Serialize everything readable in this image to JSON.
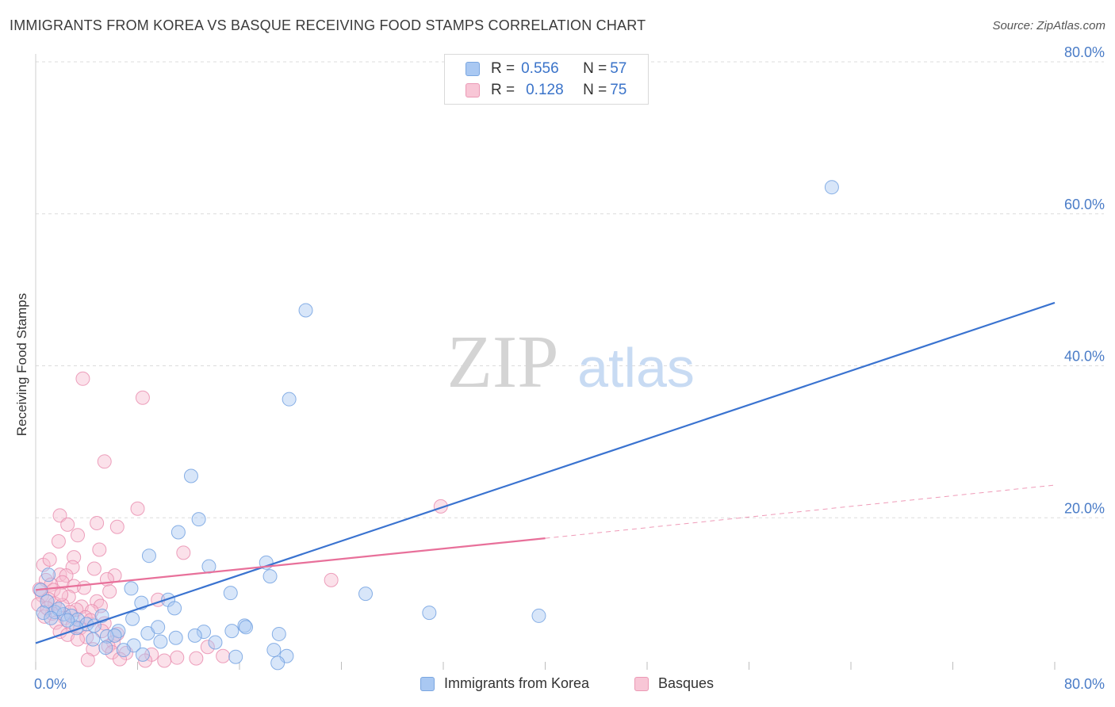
{
  "title": "IMMIGRANTS FROM KOREA VS BASQUE RECEIVING FOOD STAMPS CORRELATION CHART",
  "source": "Source: ZipAtlas.com",
  "watermark": {
    "zip": "ZIP",
    "atlas": "atlas"
  },
  "colors": {
    "blue": "#3a73d0",
    "pink": "#e8709a",
    "blue_fill": "#a9c8f2",
    "pink_fill": "#f6bdd0",
    "axis_text": "#4a7cc7"
  },
  "legend": {
    "rows": [
      {
        "r_label": "R = ",
        "r_value": "0.556",
        "n_label": "N = ",
        "n_value": "57"
      },
      {
        "r_label": "R = ",
        "r_value": "0.128",
        "n_label": "N = ",
        "n_value": "75"
      }
    ]
  },
  "chart_data": {
    "type": "scatter",
    "title": "IMMIGRANTS FROM KOREA VS BASQUE RECEIVING FOOD STAMPS CORRELATION CHART",
    "xlabel": "",
    "ylabel": "Receiving Food Stamps",
    "xlim": [
      0,
      80
    ],
    "ylim": [
      0,
      80
    ],
    "x_tick_labels": [
      "0.0%",
      "80.0%"
    ],
    "y_tick_labels": [
      "20.0%",
      "40.0%",
      "60.0%",
      "80.0%"
    ],
    "y_ticks": [
      20,
      40,
      60,
      80
    ],
    "grid": true,
    "legend_position": "top-center",
    "series": [
      {
        "name": "Immigrants from Korea",
        "color": "#3a73d0",
        "r": 0.556,
        "n": 57,
        "trend": {
          "x": [
            0,
            80
          ],
          "y": [
            3.5,
            48.3
          ],
          "style": "solid"
        },
        "points": [
          [
            62.5,
            63.5
          ],
          [
            21.2,
            47.3
          ],
          [
            19.9,
            35.6
          ],
          [
            12.2,
            25.5
          ],
          [
            12.8,
            19.8
          ],
          [
            11.2,
            18.1
          ],
          [
            8.9,
            15.0
          ],
          [
            13.6,
            13.6
          ],
          [
            18.1,
            14.1
          ],
          [
            18.4,
            12.3
          ],
          [
            25.9,
            10.0
          ],
          [
            30.9,
            7.5
          ],
          [
            39.5,
            7.1
          ],
          [
            15.3,
            10.1
          ],
          [
            7.5,
            10.7
          ],
          [
            8.3,
            8.8
          ],
          [
            10.4,
            9.2
          ],
          [
            10.9,
            8.1
          ],
          [
            1.0,
            12.5
          ],
          [
            0.4,
            10.5
          ],
          [
            0.9,
            9.0
          ],
          [
            1.5,
            7.6
          ],
          [
            2.2,
            7.3
          ],
          [
            2.8,
            7.1
          ],
          [
            3.3,
            6.6
          ],
          [
            4.0,
            6.0
          ],
          [
            4.6,
            5.8
          ],
          [
            5.2,
            7.1
          ],
          [
            5.6,
            4.4
          ],
          [
            6.5,
            5.1
          ],
          [
            7.6,
            6.7
          ],
          [
            8.8,
            4.8
          ],
          [
            9.6,
            5.6
          ],
          [
            9.8,
            3.7
          ],
          [
            13.2,
            5.0
          ],
          [
            15.4,
            5.1
          ],
          [
            16.4,
            5.8
          ],
          [
            16.5,
            5.6
          ],
          [
            19.1,
            4.7
          ],
          [
            18.7,
            2.6
          ],
          [
            19.7,
            1.8
          ],
          [
            14.1,
            3.6
          ],
          [
            15.7,
            1.7
          ],
          [
            7.7,
            3.2
          ],
          [
            6.2,
            4.5
          ],
          [
            5.5,
            2.9
          ],
          [
            4.5,
            4.0
          ],
          [
            3.2,
            5.5
          ],
          [
            2.5,
            6.5
          ],
          [
            1.8,
            8.0
          ],
          [
            0.6,
            7.5
          ],
          [
            1.2,
            6.8
          ],
          [
            6.9,
            2.6
          ],
          [
            11.0,
            4.2
          ],
          [
            8.4,
            2.0
          ],
          [
            19.0,
            0.9
          ],
          [
            12.5,
            4.5
          ]
        ]
      },
      {
        "name": "Basques",
        "color": "#e8709a",
        "r": 0.128,
        "n": 75,
        "trend": {
          "x": [
            0,
            40
          ],
          "y": [
            10.5,
            17.3
          ],
          "style": "solid",
          "dashed_extension": {
            "x": [
              40,
              80
            ],
            "y": [
              17.3,
              24.3
            ]
          }
        },
        "points": [
          [
            3.7,
            38.3
          ],
          [
            8.4,
            35.8
          ],
          [
            5.4,
            27.4
          ],
          [
            31.8,
            21.5
          ],
          [
            8.0,
            21.2
          ],
          [
            1.9,
            20.3
          ],
          [
            4.8,
            19.3
          ],
          [
            6.4,
            18.8
          ],
          [
            2.5,
            19.1
          ],
          [
            3.3,
            17.7
          ],
          [
            1.8,
            16.9
          ],
          [
            5.0,
            15.8
          ],
          [
            11.6,
            15.4
          ],
          [
            3.0,
            14.8
          ],
          [
            2.9,
            13.5
          ],
          [
            0.6,
            13.8
          ],
          [
            4.6,
            13.3
          ],
          [
            6.2,
            12.4
          ],
          [
            1.9,
            12.5
          ],
          [
            2.4,
            12.4
          ],
          [
            5.6,
            11.9
          ],
          [
            23.2,
            11.8
          ],
          [
            0.8,
            11.8
          ],
          [
            2.1,
            11.5
          ],
          [
            1.2,
            11.2
          ],
          [
            3.0,
            11.0
          ],
          [
            0.3,
            10.6
          ],
          [
            1.4,
            10.5
          ],
          [
            5.8,
            10.3
          ],
          [
            0.5,
            9.8
          ],
          [
            2.6,
            9.6
          ],
          [
            1.0,
            9.3
          ],
          [
            4.8,
            9.0
          ],
          [
            9.6,
            9.2
          ],
          [
            1.5,
            8.7
          ],
          [
            2.1,
            8.5
          ],
          [
            0.2,
            8.6
          ],
          [
            3.6,
            8.3
          ],
          [
            5.1,
            8.4
          ],
          [
            3.2,
            7.9
          ],
          [
            2.7,
            7.6
          ],
          [
            4.4,
            7.7
          ],
          [
            1.3,
            7.4
          ],
          [
            0.7,
            7.0
          ],
          [
            3.9,
            6.9
          ],
          [
            2.3,
            6.8
          ],
          [
            1.6,
            6.2
          ],
          [
            4.3,
            6.5
          ],
          [
            5.4,
            6.1
          ],
          [
            2.9,
            5.8
          ],
          [
            3.5,
            5.5
          ],
          [
            1.9,
            5.0
          ],
          [
            5.2,
            5.1
          ],
          [
            6.4,
            4.7
          ],
          [
            2.5,
            4.6
          ],
          [
            4.0,
            4.3
          ],
          [
            3.3,
            4.0
          ],
          [
            6.1,
            3.6
          ],
          [
            5.7,
            3.1
          ],
          [
            4.5,
            2.7
          ],
          [
            6.0,
            2.3
          ],
          [
            7.1,
            2.2
          ],
          [
            9.1,
            2.0
          ],
          [
            10.1,
            1.2
          ],
          [
            11.1,
            1.6
          ],
          [
            12.6,
            1.5
          ],
          [
            4.1,
            1.3
          ],
          [
            8.6,
            1.2
          ],
          [
            13.5,
            3.0
          ],
          [
            14.7,
            1.8
          ],
          [
            6.6,
            1.4
          ],
          [
            1.1,
            14.5
          ],
          [
            2.0,
            9.9
          ],
          [
            0.9,
            8.1
          ],
          [
            3.8,
            10.8
          ]
        ]
      }
    ]
  },
  "bottom_legend": {
    "series1": "Immigrants from Korea",
    "series2": "Basques"
  }
}
